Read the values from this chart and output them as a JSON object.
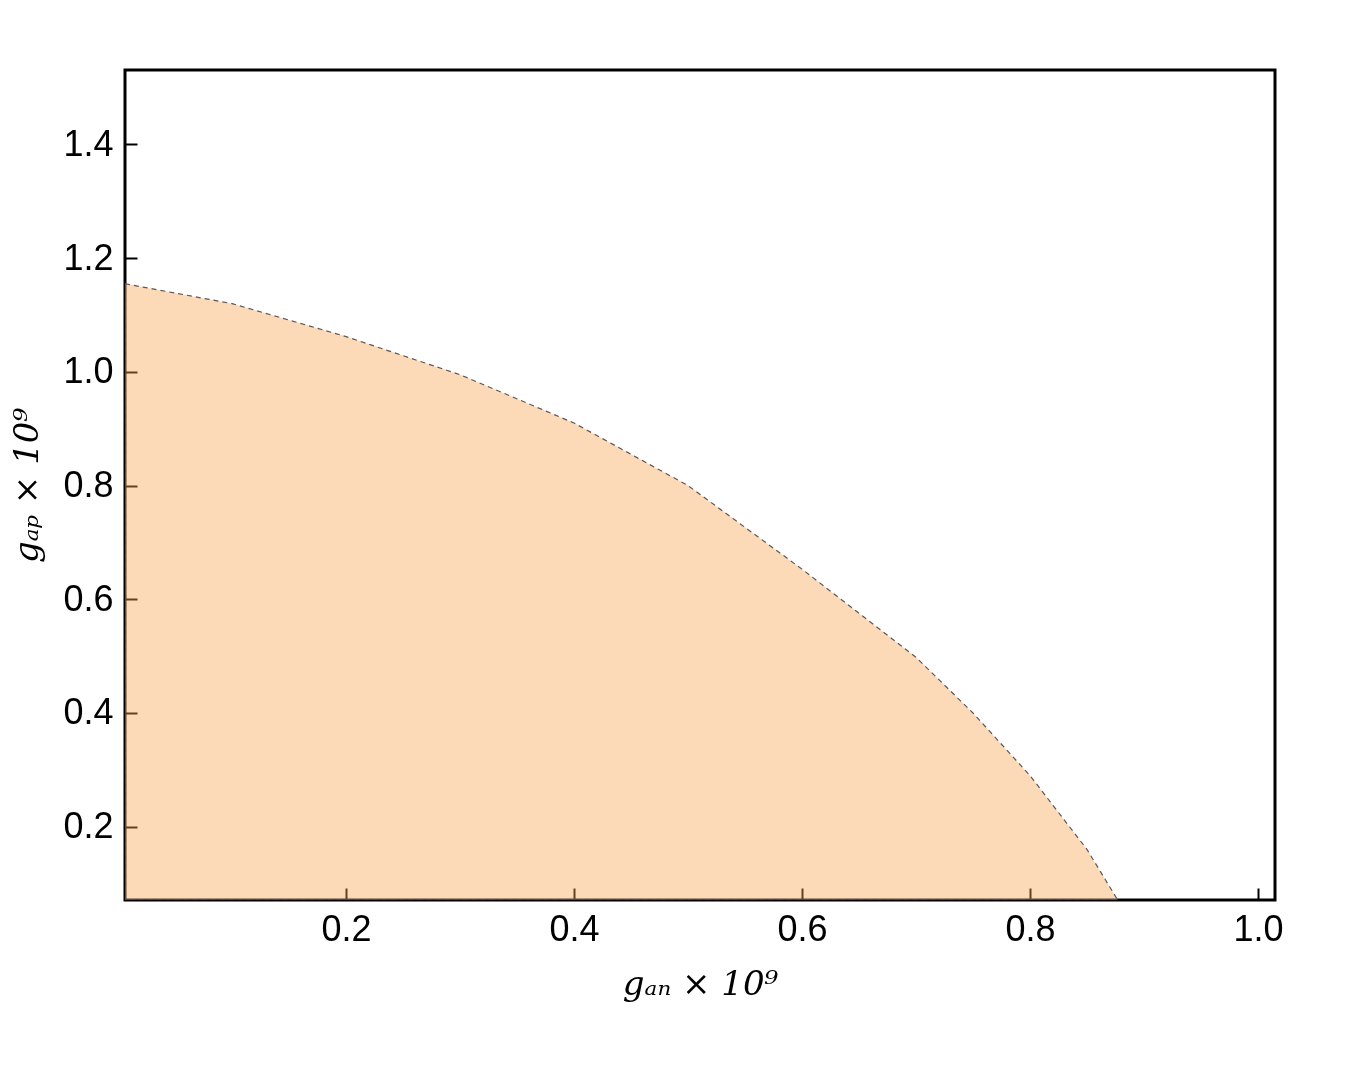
{
  "chart_data": {
    "type": "area",
    "xlabel": "gₐₙ × 10⁹",
    "ylabel": "gₐₚ × 10⁹",
    "x": [
      0.006,
      0.1,
      0.2,
      0.3,
      0.4,
      0.5,
      0.6,
      0.7,
      0.75,
      0.8,
      0.85,
      0.877
    ],
    "series": [
      {
        "color": "#f7a04b",
        "values": [
          1.155,
          1.12,
          1.062,
          0.995,
          0.91,
          0.8,
          0.653,
          0.498,
          0.4,
          0.29,
          0.16,
          0.071
        ]
      }
    ],
    "line_style": "dashed",
    "xlim": [
      0.006,
      1.015
    ],
    "ylim": [
      0.071,
      1.531
    ],
    "xticks": [
      0.2,
      0.4,
      0.6,
      0.8,
      {
        "value": 1,
        "label": "1.0"
      }
    ],
    "yticks": [
      0.2,
      0.4,
      0.6,
      0.8,
      {
        "value": 1,
        "label": "1.0"
      },
      1.2,
      1.4
    ],
    "grid": false
  }
}
